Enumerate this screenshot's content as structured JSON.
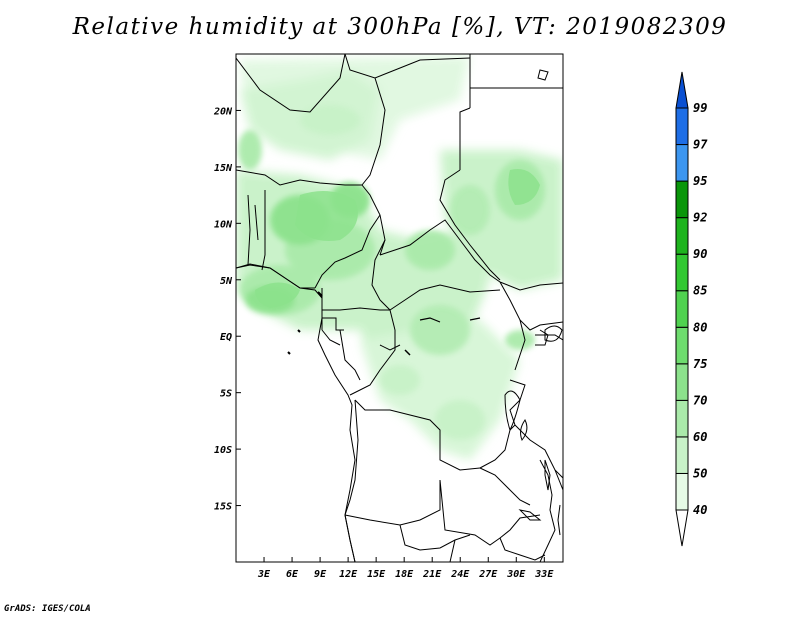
{
  "title": "Relative humidity at 300hPa [%], VT: 2019082309",
  "credit": "GrADS: IGES/COLA",
  "map": {
    "region": "Central Africa",
    "lon_range": [
      0,
      35
    ],
    "lat_range": [
      -20,
      25
    ],
    "lat_ticks": [
      {
        "value": 20,
        "label": "20N"
      },
      {
        "value": 15,
        "label": "15N"
      },
      {
        "value": 10,
        "label": "10N"
      },
      {
        "value": 5,
        "label": "5N"
      },
      {
        "value": 0,
        "label": "EQ"
      },
      {
        "value": -5,
        "label": "5S"
      },
      {
        "value": -10,
        "label": "10S"
      },
      {
        "value": -15,
        "label": "15S"
      }
    ],
    "lon_ticks": [
      {
        "value": 3,
        "label": "3E"
      },
      {
        "value": 6,
        "label": "6E"
      },
      {
        "value": 9,
        "label": "9E"
      },
      {
        "value": 12,
        "label": "12E"
      },
      {
        "value": 15,
        "label": "15E"
      },
      {
        "value": 18,
        "label": "18E"
      },
      {
        "value": 21,
        "label": "21E"
      },
      {
        "value": 24,
        "label": "24E"
      },
      {
        "value": 27,
        "label": "27E"
      },
      {
        "value": 30,
        "label": "30E"
      },
      {
        "value": 33,
        "label": "33E"
      }
    ]
  },
  "colorbar": {
    "levels": [
      "40",
      "50",
      "60",
      "70",
      "75",
      "80",
      "85",
      "90",
      "92",
      "95",
      "97",
      "99"
    ],
    "colors": [
      "#ffffff",
      "#e6fae6",
      "#c8f2c8",
      "#aaeaaa",
      "#8ce28c",
      "#6edc6e",
      "#50d250",
      "#32c832",
      "#1eb41e",
      "#0a960a",
      "#3c96f0",
      "#1e6ee6",
      "#0a50d2"
    ]
  }
}
